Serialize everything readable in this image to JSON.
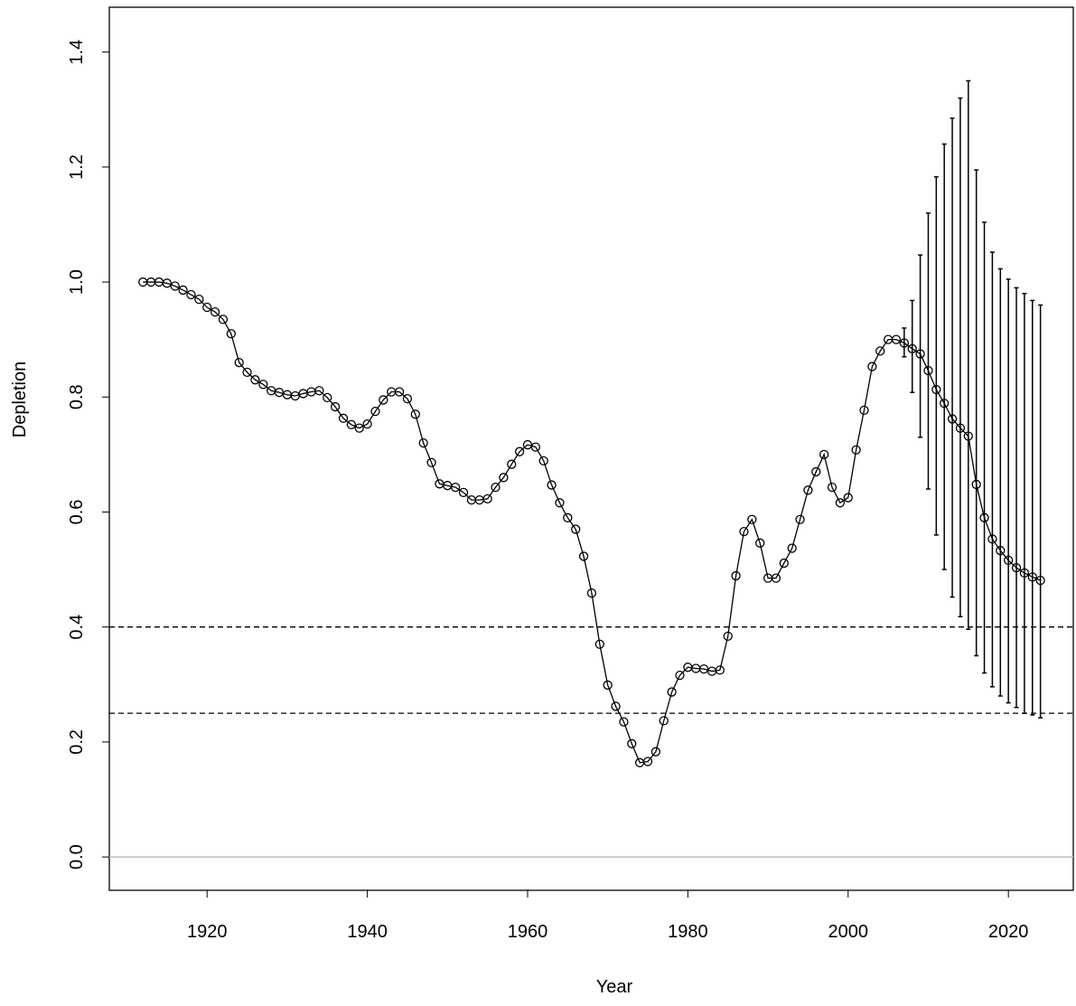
{
  "chart_data": {
    "type": "line",
    "x_label": "Year",
    "y_label": "Depletion",
    "x": [
      1912,
      1913,
      1914,
      1915,
      1916,
      1917,
      1918,
      1919,
      1920,
      1921,
      1922,
      1923,
      1924,
      1925,
      1926,
      1927,
      1928,
      1929,
      1930,
      1931,
      1932,
      1933,
      1934,
      1935,
      1936,
      1937,
      1938,
      1939,
      1940,
      1941,
      1942,
      1943,
      1944,
      1945,
      1946,
      1947,
      1948,
      1949,
      1950,
      1951,
      1952,
      1953,
      1954,
      1955,
      1956,
      1957,
      1958,
      1959,
      1960,
      1961,
      1962,
      1963,
      1964,
      1965,
      1966,
      1967,
      1968,
      1969,
      1970,
      1971,
      1972,
      1973,
      1974,
      1975,
      1976,
      1977,
      1978,
      1979,
      1980,
      1981,
      1982,
      1983,
      1984,
      1985,
      1986,
      1987,
      1988,
      1989,
      1990,
      1991,
      1992,
      1993,
      1994,
      1995,
      1996,
      1997,
      1998,
      1999,
      2000,
      2001,
      2002,
      2003,
      2004,
      2005,
      2006,
      2007,
      2008,
      2009,
      2010,
      2011,
      2012,
      2013,
      2014,
      2015,
      2016,
      2017,
      2018,
      2019,
      2020,
      2021,
      2022,
      2023,
      2024
    ],
    "series": [
      {
        "color": "#000000",
        "values": [
          1.0,
          1.0,
          1.0,
          0.998,
          0.993,
          0.986,
          0.978,
          0.97,
          0.956,
          0.948,
          0.935,
          0.91,
          0.86,
          0.843,
          0.83,
          0.822,
          0.811,
          0.808,
          0.804,
          0.802,
          0.806,
          0.809,
          0.811,
          0.799,
          0.783,
          0.763,
          0.752,
          0.746,
          0.753,
          0.775,
          0.795,
          0.809,
          0.809,
          0.797,
          0.77,
          0.72,
          0.686,
          0.649,
          0.646,
          0.643,
          0.634,
          0.621,
          0.621,
          0.623,
          0.643,
          0.66,
          0.683,
          0.705,
          0.717,
          0.713,
          0.689,
          0.647,
          0.616,
          0.59,
          0.57,
          0.523,
          0.459,
          0.37,
          0.299,
          0.262,
          0.235,
          0.197,
          0.164,
          0.166,
          0.183,
          0.237,
          0.287,
          0.316,
          0.33,
          0.328,
          0.327,
          0.323,
          0.325,
          0.384,
          0.489,
          0.566,
          0.587,
          0.546,
          0.485,
          0.485,
          0.511,
          0.537,
          0.587,
          0.638,
          0.67,
          0.7,
          0.643,
          0.616,
          0.625,
          0.708,
          0.777,
          0.853,
          0.88,
          0.9,
          0.9,
          0.894,
          0.884,
          0.875,
          0.846,
          0.813,
          0.789,
          0.762,
          0.746,
          0.732,
          0.648,
          0.59,
          0.553,
          0.533,
          0.516,
          0.503,
          0.494,
          0.487,
          0.481
        ],
        "upper": [
          null,
          null,
          null,
          null,
          null,
          null,
          null,
          null,
          null,
          null,
          null,
          null,
          null,
          null,
          null,
          null,
          null,
          null,
          null,
          null,
          null,
          null,
          null,
          null,
          null,
          null,
          null,
          null,
          null,
          null,
          null,
          null,
          null,
          null,
          null,
          null,
          null,
          null,
          null,
          null,
          null,
          null,
          null,
          null,
          null,
          null,
          null,
          null,
          null,
          null,
          null,
          null,
          null,
          null,
          null,
          null,
          null,
          null,
          null,
          null,
          null,
          null,
          null,
          null,
          null,
          null,
          null,
          null,
          null,
          null,
          null,
          null,
          null,
          null,
          null,
          null,
          null,
          null,
          null,
          null,
          null,
          null,
          null,
          null,
          null,
          null,
          null,
          null,
          null,
          null,
          null,
          null,
          null,
          null,
          null,
          0.92,
          0.968,
          1.047,
          1.12,
          1.183,
          1.24,
          1.285,
          1.32,
          1.35,
          1.195,
          1.104,
          1.052,
          1.023,
          1.005,
          0.99,
          0.98,
          0.968,
          0.96
        ],
        "lower": [
          null,
          null,
          null,
          null,
          null,
          null,
          null,
          null,
          null,
          null,
          null,
          null,
          null,
          null,
          null,
          null,
          null,
          null,
          null,
          null,
          null,
          null,
          null,
          null,
          null,
          null,
          null,
          null,
          null,
          null,
          null,
          null,
          null,
          null,
          null,
          null,
          null,
          null,
          null,
          null,
          null,
          null,
          null,
          null,
          null,
          null,
          null,
          null,
          null,
          null,
          null,
          null,
          null,
          null,
          null,
          null,
          null,
          null,
          null,
          null,
          null,
          null,
          null,
          null,
          null,
          null,
          null,
          null,
          null,
          null,
          null,
          null,
          null,
          null,
          null,
          null,
          null,
          null,
          null,
          null,
          null,
          null,
          null,
          null,
          null,
          null,
          null,
          null,
          null,
          null,
          null,
          null,
          null,
          null,
          null,
          0.87,
          0.808,
          0.73,
          0.64,
          0.56,
          0.5,
          0.452,
          0.418,
          0.396,
          0.35,
          0.32,
          0.296,
          0.28,
          0.268,
          0.26,
          0.25,
          0.247,
          0.242
        ]
      }
    ],
    "reference_lines": [
      0.4,
      0.25
    ],
    "baseline": 0,
    "xlim": [
      1907.8,
      2028.1
    ],
    "ylim": [
      -0.058,
      1.478
    ],
    "xticks": [
      1920,
      1940,
      1960,
      1980,
      2000,
      2020
    ],
    "yticks": [
      {
        "value": 0,
        "label": "0.0"
      },
      0.2,
      0.4,
      0.6,
      0.8,
      {
        "value": 1,
        "label": "1.0"
      },
      1.2,
      1.4
    ]
  }
}
